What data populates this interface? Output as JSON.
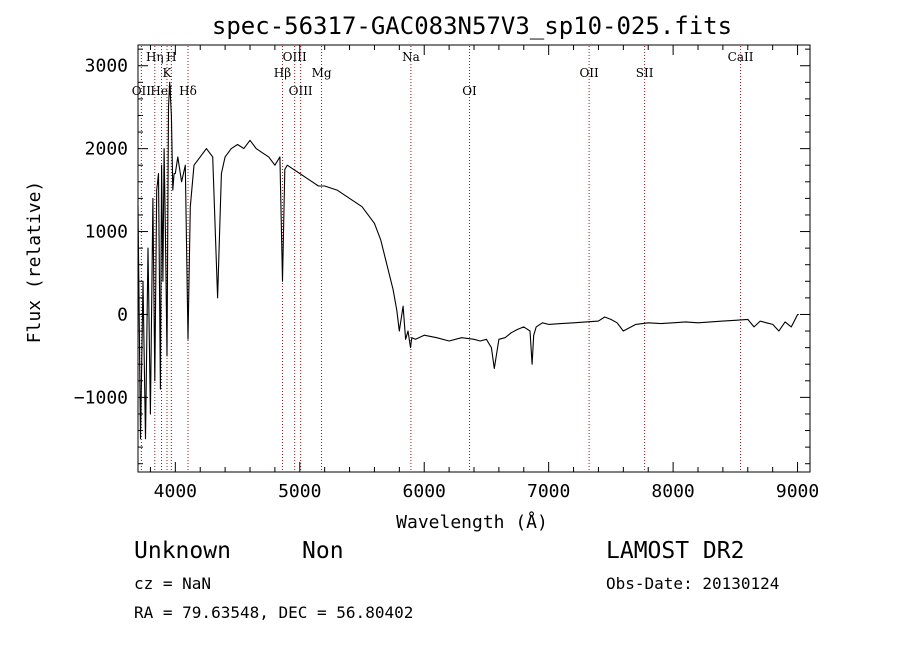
{
  "chart_data": {
    "type": "line",
    "title": "spec-56317-GAC083N57V3_sp10-025.fits",
    "xlabel": "Wavelength (Å)",
    "ylabel": "Flux (relative)",
    "xlim": [
      3700,
      9100
    ],
    "ylim": [
      -1900,
      3250
    ],
    "xticks": [
      4000,
      5000,
      6000,
      7000,
      8000,
      9000
    ],
    "yticks": [
      -1000,
      0,
      1000,
      2000,
      3000
    ],
    "grid": false,
    "series": [
      {
        "color": "#000000",
        "x": [
          3700,
          3720,
          3740,
          3760,
          3780,
          3800,
          3820,
          3835,
          3850,
          3865,
          3880,
          3890,
          3900,
          3910,
          3920,
          3933,
          3945,
          3955,
          3968,
          3980,
          3990,
          4000,
          4020,
          4050,
          4080,
          4102,
          4120,
          4150,
          4200,
          4250,
          4300,
          4340,
          4370,
          4400,
          4450,
          4500,
          4550,
          4600,
          4650,
          4700,
          4750,
          4800,
          4840,
          4861,
          4880,
          4900,
          4950,
          5000,
          5050,
          5100,
          5150,
          5200,
          5300,
          5400,
          5500,
          5600,
          5650,
          5700,
          5750,
          5780,
          5800,
          5830,
          5850,
          5870,
          5890,
          5900,
          5930,
          6000,
          6100,
          6200,
          6300,
          6400,
          6450,
          6500,
          6540,
          6563,
          6600,
          6650,
          6700,
          6750,
          6800,
          6850,
          6867,
          6880,
          6900,
          6950,
          7000,
          7100,
          7200,
          7300,
          7400,
          7450,
          7500,
          7550,
          7600,
          7700,
          7800,
          7900,
          8000,
          8100,
          8200,
          8300,
          8400,
          8500,
          8600,
          8650,
          8700,
          8750,
          8800,
          8850,
          8900,
          8950,
          9000,
          9010
        ],
        "y": [
          1300,
          -1500,
          400,
          -1500,
          800,
          -1200,
          1400,
          -800,
          1500,
          1700,
          -900,
          1800,
          400,
          2000,
          1000,
          -500,
          2500,
          2800,
          2400,
          1500,
          1700,
          1700,
          1900,
          1600,
          1800,
          -300,
          1300,
          1800,
          1900,
          2000,
          1900,
          200,
          1700,
          1900,
          2000,
          2050,
          2000,
          2100,
          2000,
          1950,
          1900,
          1800,
          1900,
          400,
          1750,
          1800,
          1750,
          1700,
          1650,
          1600,
          1550,
          1550,
          1500,
          1400,
          1300,
          1100,
          900,
          600,
          300,
          50,
          -200,
          100,
          -300,
          -200,
          -400,
          -280,
          -300,
          -250,
          -280,
          -320,
          -280,
          -300,
          -320,
          -300,
          -400,
          -650,
          -300,
          -280,
          -220,
          -180,
          -150,
          -200,
          -600,
          -250,
          -150,
          -100,
          -120,
          -110,
          -100,
          -90,
          -80,
          -30,
          -60,
          -100,
          -200,
          -120,
          -100,
          -110,
          -100,
          -90,
          -100,
          -90,
          -80,
          -70,
          -60,
          -150,
          -80,
          -100,
          -120,
          -200,
          -90,
          -150,
          0,
          0
        ]
      }
    ],
    "lines": [
      {
        "label": "Hη",
        "x": 3835,
        "row": 0
      },
      {
        "label": "H",
        "x": 3968,
        "row": 0
      },
      {
        "label": "K",
        "x": 3933,
        "row": 1
      },
      {
        "label": "OII",
        "x": 3727,
        "row": 2
      },
      {
        "label": "HeI",
        "x": 3889,
        "row": 2
      },
      {
        "label": "Hδ",
        "x": 4102,
        "row": 2
      },
      {
        "label": "OIII",
        "x": 4959,
        "row": 0
      },
      {
        "label": "Hβ",
        "x": 4861,
        "row": 1
      },
      {
        "label": "Mg",
        "x": 5175,
        "row": 1
      },
      {
        "label": "OIII",
        "x": 5007,
        "row": 2
      },
      {
        "label": "Na",
        "x": 5893,
        "row": 0
      },
      {
        "label": "OI",
        "x": 6364,
        "row": 2
      },
      {
        "label": "OII",
        "x": 7325,
        "row": 1
      },
      {
        "label": "SII",
        "x": 7771,
        "row": 1
      },
      {
        "label": "CaII",
        "x": 8542,
        "row": 0
      }
    ]
  },
  "info": {
    "class_label": "Unknown",
    "subclass_label": "Non",
    "cz_text": "cz = NaN",
    "radec_text": "RA =  79.63548, DEC =  56.80402",
    "survey": "LAMOST DR2",
    "obs_date": "Obs-Date: 20130124"
  }
}
